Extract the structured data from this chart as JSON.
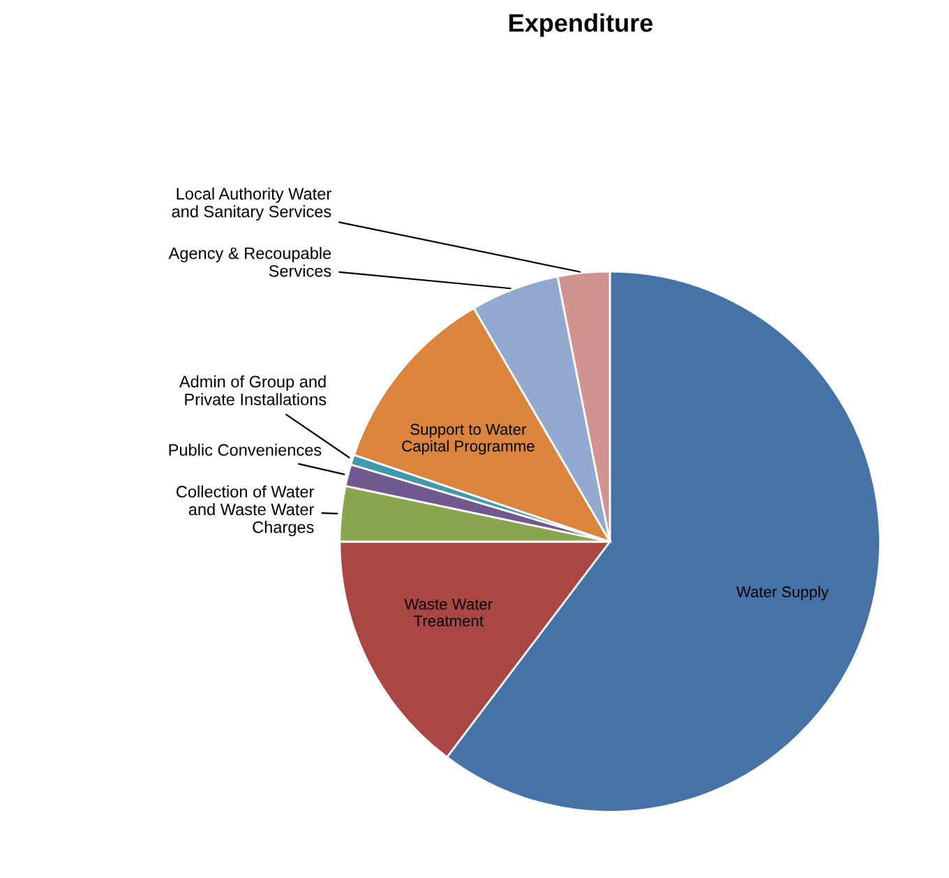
{
  "chart_data": {
    "type": "pie",
    "title": "Expenditure",
    "categories": [
      "Water Supply",
      "Waste Water\nTreatment",
      "Collection of Water\nand Waste Water\nCharges",
      "Public Conveniences",
      "Admin of Group and\nPrivate Installations",
      "Support to Water\nCapital Programme",
      "Agency & Recoupable\nServices",
      "Local Authority Water\nand Sanitary Services"
    ],
    "values": [
      60.3,
      14.7,
      3.3,
      1.3,
      0.6,
      11.4,
      5.3,
      3.1
    ],
    "colors": [
      "#4572a7",
      "#aa4643",
      "#89a54e",
      "#71588f",
      "#4198af",
      "#db843d",
      "#93a9cf",
      "#d19392"
    ],
    "legend": false
  }
}
